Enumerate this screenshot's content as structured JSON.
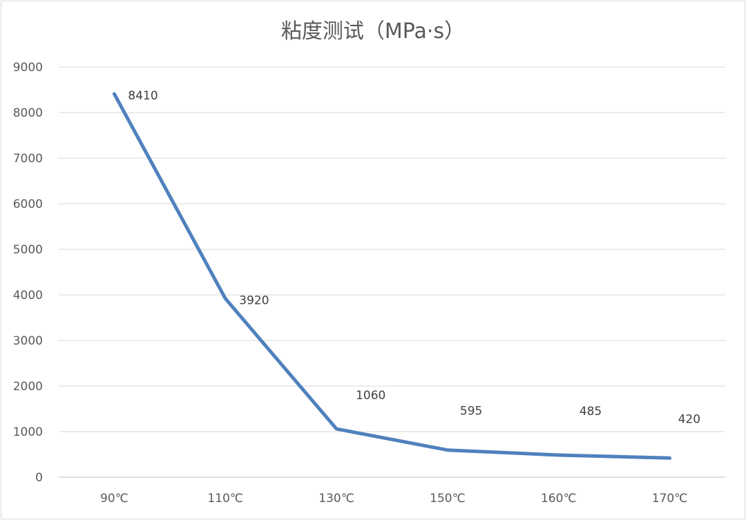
{
  "chart_data": {
    "type": "line",
    "title": "粘度测试（MPa·s）",
    "categories": [
      "90℃",
      "110℃",
      "130℃",
      "150℃",
      "160℃",
      "170℃"
    ],
    "series": [
      {
        "values": [
          8410,
          3920,
          1060,
          595,
          485,
          420
        ],
        "color": "#4f81bd"
      }
    ],
    "data_labels": [
      "8410",
      "3920",
      "1060",
      "595",
      "485",
      "420"
    ],
    "yticks": [
      "0",
      "1000",
      "2000",
      "3000",
      "4000",
      "5000",
      "6000",
      "7000",
      "8000",
      "9000"
    ],
    "ylim": [
      0,
      9000
    ],
    "grid": true,
    "legend": "none"
  }
}
